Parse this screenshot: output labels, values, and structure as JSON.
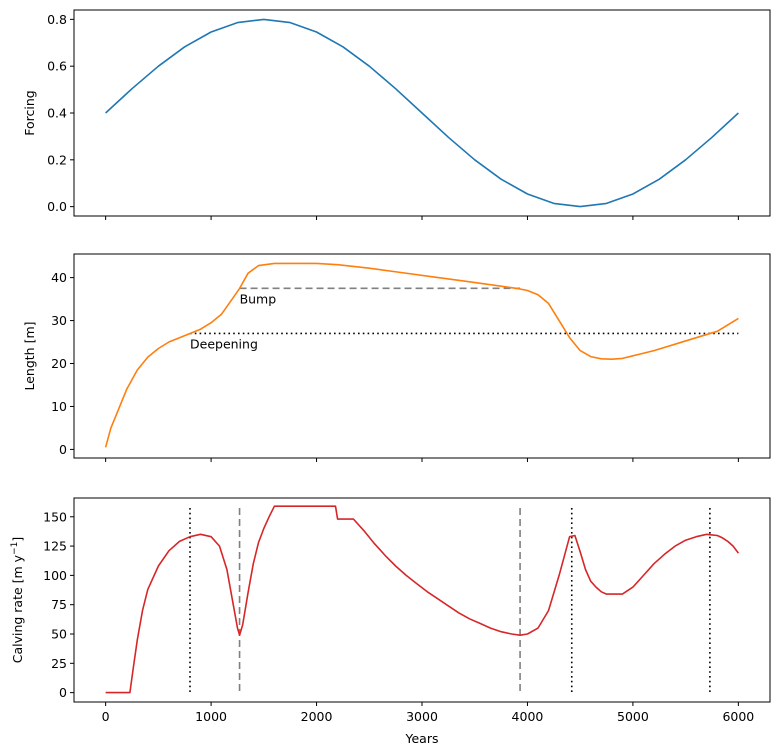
{
  "chart_data": [
    {
      "type": "line",
      "ylabel": "Forcing",
      "xlabel": "",
      "xlim": [
        -300,
        6300
      ],
      "ylim": [
        -0.04,
        0.84
      ],
      "yticks": [
        "0.0",
        "0.2",
        "0.4",
        "0.6",
        "0.8"
      ],
      "ytick_values": [
        0,
        0.2,
        0.4,
        0.6,
        0.8
      ],
      "xtick_values": [
        0,
        1000,
        2000,
        3000,
        4000,
        5000,
        6000
      ],
      "series": [
        {
          "name": "Forcing",
          "color": "#1f77b4",
          "x": [
            0,
            250,
            500,
            750,
            1000,
            1250,
            1500,
            1750,
            2000,
            2250,
            2500,
            2750,
            3000,
            3250,
            3500,
            3750,
            4000,
            4250,
            4500,
            4750,
            5000,
            5250,
            5500,
            5750,
            6000
          ],
          "y": [
            0.4,
            0.504,
            0.6,
            0.683,
            0.746,
            0.786,
            0.8,
            0.786,
            0.746,
            0.683,
            0.6,
            0.504,
            0.4,
            0.296,
            0.2,
            0.117,
            0.054,
            0.014,
            0.0,
            0.014,
            0.054,
            0.117,
            0.2,
            0.296,
            0.4
          ]
        }
      ]
    },
    {
      "type": "line",
      "ylabel": "Length [m]",
      "xlabel": "",
      "xlim": [
        -300,
        6300
      ],
      "ylim": [
        -2,
        45.5
      ],
      "yticks": [
        "0",
        "10",
        "20",
        "30",
        "40"
      ],
      "ytick_values": [
        0,
        10,
        20,
        30,
        40
      ],
      "xtick_values": [
        0,
        1000,
        2000,
        3000,
        4000,
        5000,
        6000
      ],
      "series": [
        {
          "name": "Length",
          "color": "#ff7f0e",
          "x": [
            0,
            50,
            100,
            200,
            300,
            400,
            500,
            600,
            700,
            800,
            900,
            1000,
            1100,
            1200,
            1270,
            1350,
            1450,
            1600,
            1800,
            2000,
            2200,
            2500,
            2800,
            3100,
            3400,
            3700,
            3900,
            4000,
            4100,
            4200,
            4300,
            4400,
            4500,
            4600,
            4700,
            4800,
            4900,
            5000,
            5200,
            5400,
            5600,
            5800,
            6000
          ],
          "y": [
            0.5,
            5,
            8,
            14,
            18.5,
            21.5,
            23.5,
            25,
            26,
            27,
            28,
            29.5,
            31.5,
            35,
            37.5,
            41,
            42.8,
            43.3,
            43.3,
            43.3,
            43,
            42.2,
            41.2,
            40.2,
            39.2,
            38.2,
            37.5,
            37,
            36,
            34,
            30,
            26,
            23,
            21.6,
            21.1,
            21,
            21.2,
            21.8,
            23,
            24.5,
            26,
            27.5,
            30.5
          ]
        }
      ],
      "hlines": [
        {
          "y": 37.5,
          "x_from": 1270,
          "x_to": 3930,
          "style": "dashed",
          "color": "#808080"
        },
        {
          "y": 27,
          "x_from": 800,
          "x_to": 6000,
          "style": "dotted",
          "color": "#000000"
        }
      ],
      "annotations": [
        {
          "text": "Bump",
          "x": 1270,
          "y": 34
        },
        {
          "text": "Deepening",
          "x": 800,
          "y": 23.5
        }
      ]
    },
    {
      "type": "line",
      "ylabel": "Calving rate [m y",
      "ylabel_sup": "−1",
      "ylabel_end": "]",
      "xlabel": "Years",
      "xlim": [
        -300,
        6300
      ],
      "ylim": [
        -8,
        166
      ],
      "yticks": [
        "0",
        "25",
        "50",
        "75",
        "100",
        "125",
        "150"
      ],
      "ytick_values": [
        0,
        25,
        50,
        75,
        100,
        125,
        150
      ],
      "xticks": [
        "0",
        "1000",
        "2000",
        "3000",
        "4000",
        "5000",
        "6000"
      ],
      "xtick_values": [
        0,
        1000,
        2000,
        3000,
        4000,
        5000,
        6000
      ],
      "series": [
        {
          "name": "Calving rate",
          "color": "#d62728",
          "x": [
            0,
            100,
            230,
            260,
            300,
            350,
            400,
            500,
            600,
            700,
            800,
            900,
            1000,
            1080,
            1150,
            1200,
            1250,
            1270,
            1300,
            1350,
            1400,
            1450,
            1500,
            1550,
            1600,
            1750,
            1900,
            2050,
            2180,
            2200,
            2350,
            2450,
            2550,
            2650,
            2750,
            2850,
            2950,
            3050,
            3150,
            3250,
            3350,
            3450,
            3550,
            3650,
            3750,
            3850,
            3930,
            4000,
            4100,
            4200,
            4300,
            4400,
            4450,
            4500,
            4550,
            4600,
            4650,
            4700,
            4750,
            4800,
            4900,
            5000,
            5100,
            5200,
            5300,
            5400,
            5500,
            5600,
            5700,
            5750,
            5800,
            5850,
            5900,
            5950,
            6000
          ],
          "y": [
            0,
            0,
            0,
            20,
            45,
            70,
            88,
            108,
            121,
            129,
            133,
            135,
            133,
            125,
            105,
            80,
            55,
            49,
            58,
            85,
            110,
            128,
            140,
            150,
            159,
            159,
            159,
            159,
            159,
            148,
            148,
            138,
            127,
            117,
            108,
            100,
            93,
            86,
            80,
            74,
            68,
            63,
            59,
            55,
            52,
            50,
            49,
            50,
            55,
            70,
            100,
            133,
            134,
            120,
            105,
            95,
            90,
            86,
            84,
            84,
            84,
            90,
            100,
            110,
            118,
            125,
            130,
            133,
            135,
            134.5,
            134,
            132,
            129,
            125,
            119
          ]
        }
      ],
      "vlines": [
        {
          "x": 800,
          "style": "dotted",
          "color": "#000000"
        },
        {
          "x": 1270,
          "style": "dashed",
          "color": "#808080"
        },
        {
          "x": 3930,
          "style": "dashed",
          "color": "#808080"
        },
        {
          "x": 4420,
          "style": "dotted",
          "color": "#000000"
        },
        {
          "x": 5730,
          "style": "dotted",
          "color": "#000000"
        }
      ]
    }
  ]
}
